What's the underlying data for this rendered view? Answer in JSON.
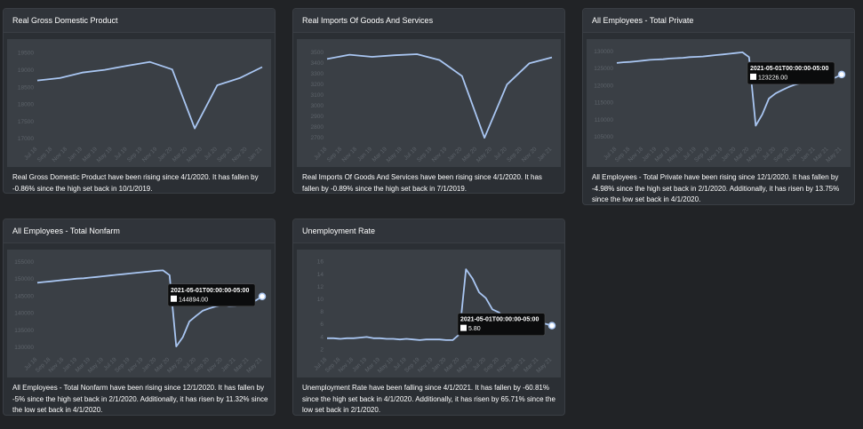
{
  "cards": [
    {
      "title": "Real Gross Domestic Product",
      "description": "Real Gross Domestic Product have been rising since 4/1/2020. It has fallen by -0.86% since the high set back in 10/1/2019."
    },
    {
      "title": "Real Imports Of Goods And Services",
      "description": "Real Imports Of Goods And Services have been rising since 4/1/2020. It has fallen by -0.89% since the high set back in 7/1/2019."
    },
    {
      "title": "All Employees - Total Private",
      "description": "All Employees - Total Private have been rising since 12/1/2020. It has fallen by -4.98% since the high set back in 2/1/2020. Additionally, it has risen by 13.75% since the low set back in 4/1/2020."
    },
    {
      "title": "All Employees - Total Nonfarm",
      "description": "All Employees - Total Nonfarm have been rising since 12/1/2020. It has fallen by -5% since the high set back in 2/1/2020. Additionally, it has risen by 11.32% since the low set back in 4/1/2020."
    },
    {
      "title": "Unemployment Rate",
      "description": "Unemployment Rate have been falling since 4/1/2021. It has fallen by -60.81% since the high set back in 4/1/2020. Additionally, it has risen by 65.71% since the low set back in 2/1/2020."
    }
  ],
  "chart_data": [
    {
      "type": "line",
      "title": "Real Gross Domestic Product",
      "color": "#a9c6f2",
      "x": [
        "Jul 18",
        "Oct 18",
        "Jan 19",
        "Apr 19",
        "Jul 19",
        "Oct 19",
        "Jan 20",
        "Apr 20",
        "Jul 20",
        "Oct 20",
        "Jan 21"
      ],
      "values": [
        18700,
        18770,
        18930,
        19010,
        19130,
        19240,
        19020,
        17300,
        18560,
        18770,
        19090
      ],
      "x_ticks": [
        "Jul 18",
        "Sep 18",
        "Nov 18",
        "Jan 19",
        "Mar 19",
        "May 19",
        "Jul 19",
        "Sep 19",
        "Nov 19",
        "Jan 20",
        "Mar 20",
        "May 20",
        "Jul 20",
        "Sep 20",
        "Nov 20",
        "Jan 21"
      ],
      "y_ticks": [
        17000,
        17500,
        18000,
        18500,
        19000,
        19500
      ],
      "ylim": [
        16900,
        19700
      ],
      "tooltip": null
    },
    {
      "type": "line",
      "title": "Real Imports Of Goods And Services",
      "color": "#a9c6f2",
      "x": [
        "Jul 18",
        "Oct 18",
        "Jan 19",
        "Apr 19",
        "Jul 19",
        "Oct 19",
        "Jan 20",
        "Apr 20",
        "Jul 20",
        "Oct 20",
        "Jan 21"
      ],
      "values": [
        3440,
        3480,
        3460,
        3475,
        3485,
        3430,
        3280,
        2700,
        3200,
        3400,
        3455
      ],
      "x_ticks": [
        "Jul 18",
        "Sep 18",
        "Nov 18",
        "Jan 19",
        "Mar 19",
        "May 19",
        "Jul 19",
        "Sep 19",
        "Nov 19",
        "Jan 20",
        "Mar 20",
        "May 20",
        "Jul 20",
        "Sep 20",
        "Nov 20",
        "Jan 21"
      ],
      "y_ticks": [
        2700,
        2800,
        2900,
        3000,
        3100,
        3200,
        3300,
        3400,
        3500
      ],
      "ylim": [
        2660,
        3560
      ],
      "tooltip": null
    },
    {
      "type": "line",
      "title": "All Employees - Total Private",
      "color": "#a9c6f2",
      "x": [
        "Jul 18",
        "Aug 18",
        "Sep 18",
        "Oct 18",
        "Nov 18",
        "Dec 18",
        "Jan 19",
        "Feb 19",
        "Mar 19",
        "Apr 19",
        "May 19",
        "Jun 19",
        "Jul 19",
        "Aug 19",
        "Sep 19",
        "Oct 19",
        "Nov 19",
        "Dec 19",
        "Jan 20",
        "Feb 20",
        "Mar 20",
        "Apr 20",
        "May 20",
        "Jun 20",
        "Jul 20",
        "Aug 20",
        "Sep 20",
        "Oct 20",
        "Nov 20",
        "Dec 20",
        "Jan 21",
        "Feb 21",
        "Mar 21",
        "Apr 21",
        "May 21"
      ],
      "values": [
        126600,
        126800,
        126900,
        127100,
        127300,
        127500,
        127600,
        127700,
        127900,
        128000,
        128100,
        128300,
        128400,
        128500,
        128700,
        128900,
        129100,
        129300,
        129500,
        129700,
        128300,
        108300,
        111600,
        116200,
        117700,
        118700,
        119600,
        120300,
        120800,
        120700,
        121000,
        121400,
        122100,
        122300,
        123226
      ],
      "x_ticks": [
        "Jul 18",
        "Sep 18",
        "Nov 18",
        "Jan 19",
        "Mar 19",
        "May 19",
        "Jul 19",
        "Sep 19",
        "Nov 19",
        "Jan 20",
        "Mar 20",
        "May 20",
        "Jul 20",
        "Sep 20",
        "Nov 20",
        "Jan 21",
        "Mar 21",
        "May 21"
      ],
      "y_ticks": [
        105000,
        110000,
        115000,
        120000,
        125000,
        130000
      ],
      "ylim": [
        103500,
        131500
      ],
      "tooltip": {
        "label": "2021-05-01T00:00:00-05:00",
        "value": "123226.00"
      }
    },
    {
      "type": "line",
      "title": "All Employees - Total Nonfarm",
      "color": "#a9c6f2",
      "x": [
        "Jul 18",
        "Aug 18",
        "Sep 18",
        "Oct 18",
        "Nov 18",
        "Dec 18",
        "Jan 19",
        "Feb 19",
        "Mar 19",
        "Apr 19",
        "May 19",
        "Jun 19",
        "Jul 19",
        "Aug 19",
        "Sep 19",
        "Oct 19",
        "Nov 19",
        "Dec 19",
        "Jan 20",
        "Feb 20",
        "Mar 20",
        "Apr 20",
        "May 20",
        "Jun 20",
        "Jul 20",
        "Aug 20",
        "Sep 20",
        "Oct 20",
        "Nov 20",
        "Dec 20",
        "Jan 21",
        "Feb 21",
        "Mar 21",
        "Apr 21",
        "May 21"
      ],
      "values": [
        148900,
        149100,
        149300,
        149500,
        149700,
        149900,
        150100,
        150200,
        150400,
        150600,
        150800,
        151000,
        151200,
        151400,
        151600,
        151800,
        152000,
        152200,
        152400,
        152500,
        151100,
        130300,
        133000,
        137600,
        139200,
        140700,
        141400,
        142000,
        142400,
        142100,
        142200,
        142700,
        143400,
        143700,
        144894
      ],
      "x_ticks": [
        "Jul 18",
        "Sep 18",
        "Nov 18",
        "Jan 19",
        "Mar 19",
        "May 19",
        "Jul 19",
        "Sep 19",
        "Nov 19",
        "Jan 20",
        "Mar 20",
        "May 20",
        "Jul 20",
        "Sep 20",
        "Nov 20",
        "Jan 21",
        "Mar 21",
        "May 21"
      ],
      "y_ticks": [
        130000,
        135000,
        140000,
        145000,
        150000,
        155000
      ],
      "ylim": [
        128500,
        156500
      ],
      "tooltip": {
        "label": "2021-05-01T00:00:00-05:00",
        "value": "144894.00"
      }
    },
    {
      "type": "line",
      "title": "Unemployment Rate",
      "color": "#a9c6f2",
      "x": [
        "Jul 18",
        "Aug 18",
        "Sep 18",
        "Oct 18",
        "Nov 18",
        "Dec 18",
        "Jan 19",
        "Feb 19",
        "Mar 19",
        "Apr 19",
        "May 19",
        "Jun 19",
        "Jul 19",
        "Aug 19",
        "Sep 19",
        "Oct 19",
        "Nov 19",
        "Dec 19",
        "Jan 20",
        "Feb 20",
        "Mar 20",
        "Apr 20",
        "May 20",
        "Jun 20",
        "Jul 20",
        "Aug 20",
        "Sep 20",
        "Oct 20",
        "Nov 20",
        "Dec 20",
        "Jan 21",
        "Feb 21",
        "Mar 21",
        "Apr 21",
        "May 21"
      ],
      "values": [
        3.8,
        3.8,
        3.7,
        3.8,
        3.8,
        3.9,
        4.0,
        3.8,
        3.8,
        3.7,
        3.7,
        3.6,
        3.7,
        3.6,
        3.5,
        3.6,
        3.6,
        3.6,
        3.5,
        3.5,
        4.4,
        14.8,
        13.3,
        11.1,
        10.2,
        8.4,
        7.9,
        6.9,
        6.7,
        6.7,
        6.3,
        6.2,
        6.0,
        6.1,
        5.8
      ],
      "x_ticks": [
        "Jul 18",
        "Sep 18",
        "Nov 18",
        "Jan 19",
        "Mar 19",
        "May 19",
        "Jul 19",
        "Sep 19",
        "Nov 19",
        "Jan 20",
        "Mar 20",
        "May 20",
        "Jul 20",
        "Sep 20",
        "Nov 20",
        "Jan 21",
        "Mar 21",
        "May 21"
      ],
      "y_ticks": [
        2,
        4,
        6,
        8,
        10,
        12,
        14,
        16
      ],
      "ylim": [
        1.5,
        16.8
      ],
      "tooltip": {
        "label": "2021-05-01T00:00:00-05:00",
        "value": "5.80"
      }
    }
  ]
}
